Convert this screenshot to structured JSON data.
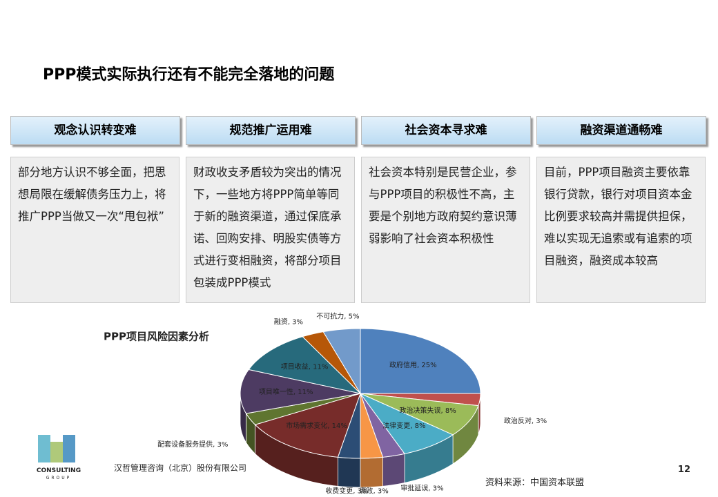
{
  "header": {
    "title": "PPP模式实际执行还有不能完全落地的问题"
  },
  "cards": [
    {
      "title": "观念认识转变难",
      "body": "部分地方认识不够全面，把思想局限在缓解债务压力上，将推广PPP当做又一次“甩包袱”"
    },
    {
      "title": "规范推广运用难",
      "body": "财政收支矛盾较为突出的情况下，一些地方将PPP简单等同于新的融资渠道，通过保底承诺、回购安排、明股实债等方式进行变相融资，将部分项目包装成PPP模式"
    },
    {
      "title": "社会资本寻求难",
      "body": "社会资本特别是民营企业，参与PPP项目的积极性不高，主要是个别地方政府契约意识薄弱影响了社会资本积极性"
    },
    {
      "title": "融资渠道通畅难",
      "body": "目前，PPP项目融资主要依靠银行贷款，银行对项目资本金比例要求较高并需提供担保，难以实现无追索或有追索的项目融资，融资成本较高"
    }
  ],
  "chart_data": {
    "type": "pie",
    "title": "PPP项目风险因素分析",
    "categories": [
      "政府信用, 25%",
      "政治反对, 3%",
      "政治决策失误, 8%",
      "法律变更, 8%",
      "审批延误, 3%",
      "腐败, 3%",
      "收费变更, 3%",
      "市场需求变化, 14%",
      "配套设备服务提供, 3%",
      "项目唯一性, 11%",
      "项目收益, 11%",
      "融资, 3%",
      "不可抗力, 5%"
    ],
    "values": [
      25,
      3,
      8,
      8,
      3,
      3,
      3,
      14,
      3,
      11,
      11,
      3,
      5
    ],
    "colors": [
      "#4f81bd",
      "#c0504d",
      "#9bbb59",
      "#4bacc6",
      "#8064a2",
      "#f79646",
      "#2c4d75",
      "#772c2a",
      "#5f7530",
      "#4d3b62",
      "#276a7c",
      "#b65708",
      "#729aca"
    ]
  },
  "footer": {
    "company": "汉哲管理咨询（北京）股份有限公司",
    "source": "资料来源：中国资本联盟",
    "page": "12",
    "logo_text": "CONSULTING",
    "logo_sub": "GROUP"
  }
}
